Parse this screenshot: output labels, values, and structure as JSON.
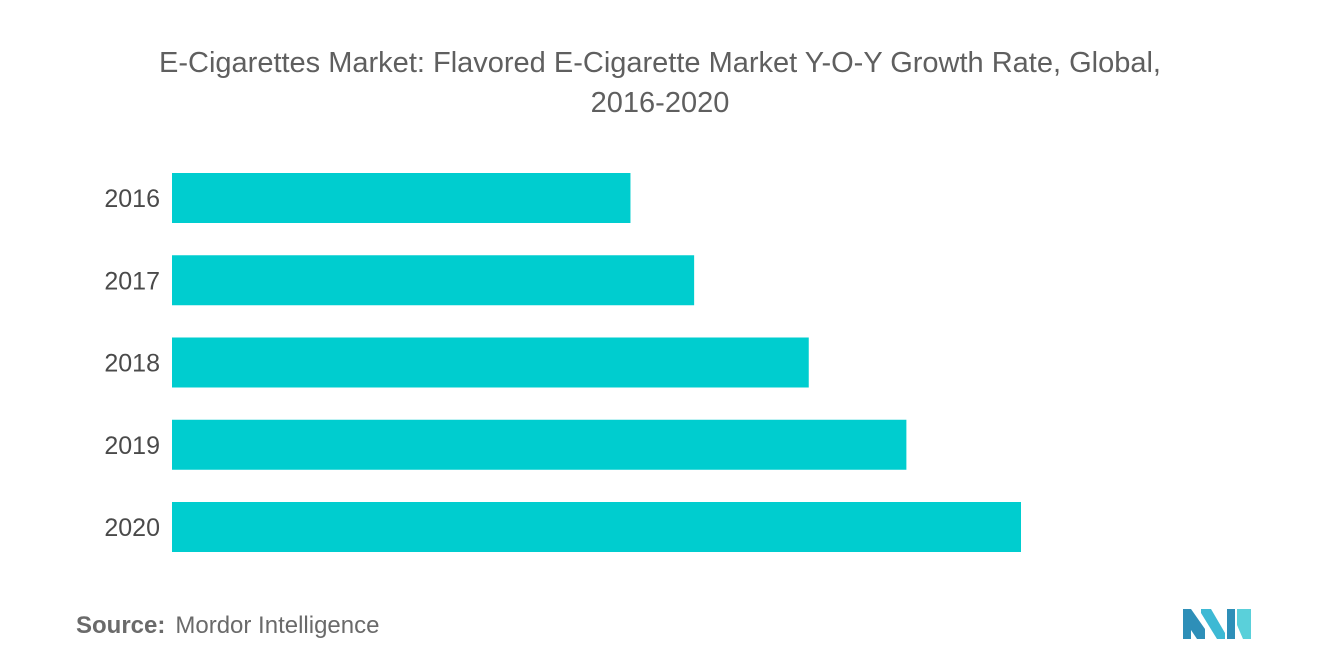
{
  "chart_data": {
    "type": "bar",
    "orientation": "horizontal",
    "title": "E-Cigarettes Market: Flavored E-Cigarette Market Y-O-Y Growth Rate, Global, 2016-2020",
    "title_lines": [
      "E-Cigarettes Market: Flavored E-Cigarette Market Y-O-Y Growth Rate, Global,",
      "2016-2020"
    ],
    "categories": [
      "2016",
      "2017",
      "2018",
      "2019",
      "2020"
    ],
    "values": [
      0.54,
      0.615,
      0.75,
      0.865,
      1.0
    ],
    "value_units": "relative (no value axis shown)",
    "xlim": [
      0,
      1
    ],
    "xlabel": "",
    "ylabel": "",
    "grid": false,
    "legend": "none",
    "bar_color": "#00CDCF"
  },
  "source": {
    "label": "Source:",
    "text": "Mordor Intelligence"
  },
  "logo": {
    "icon": "mordor-intelligence-logo-icon",
    "colors": [
      "#2E8FB8",
      "#3DB9D4",
      "#5AD0DA"
    ]
  }
}
